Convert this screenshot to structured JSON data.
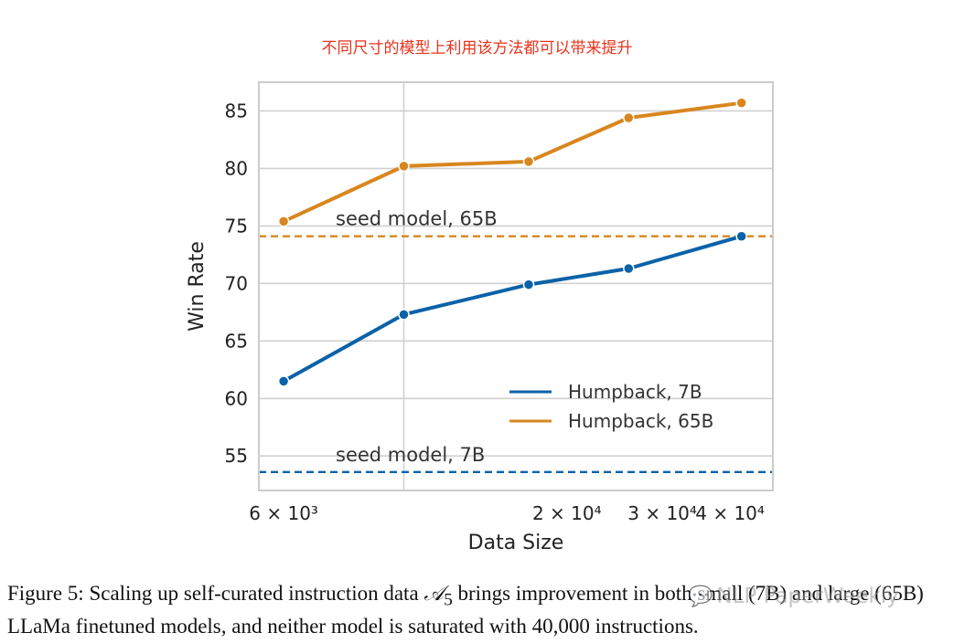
{
  "annotation": "不同尺寸的模型上利用该方法都可以带来提升",
  "chart_data": {
    "type": "line",
    "xlabel": "Data Size",
    "ylabel": "Win Rate",
    "xscale": "log",
    "xlim": [
      5400,
      48000
    ],
    "ylim": [
      52,
      87.5
    ],
    "grid": true,
    "legend_position": "lower-right",
    "x_ticks": [
      {
        "value": 6000,
        "label": "6 × 10³"
      },
      {
        "value": 20000,
        "label": "2 × 10⁴"
      },
      {
        "value": 30000,
        "label": "3 × 10⁴"
      },
      {
        "value": 40000,
        "label": "4 × 10⁴"
      }
    ],
    "x_gridline_at": 10000,
    "y_ticks": [
      55,
      60,
      65,
      70,
      75,
      80,
      85
    ],
    "series": [
      {
        "name": "Humpback, 7B",
        "color": "#0a62a8",
        "x": [
          6000,
          10000,
          17000,
          26000,
          42000
        ],
        "y": [
          61.5,
          67.3,
          69.9,
          71.3,
          74.1
        ]
      },
      {
        "name": "Humpback, 65B",
        "color": "#d9861f",
        "x": [
          6000,
          10000,
          17000,
          26000,
          42000
        ],
        "y": [
          75.4,
          80.2,
          80.6,
          84.4,
          85.7
        ]
      }
    ],
    "reference_lines": [
      {
        "label": "seed model, 65B",
        "y": 74.1,
        "color": "#d9861f"
      },
      {
        "label": "seed model, 7B",
        "y": 53.6,
        "color": "#0a62a8"
      }
    ]
  },
  "caption": {
    "prefix": "Figure 5: Scaling up self-curated instruction data ",
    "symbol": "𝒜",
    "subscript": "5",
    "rest": " brings improvement in both small (7B) and large (65B) LLaMa finetuned models, and neither model is saturated with 40,000 instructions."
  },
  "watermark": {
    "icon": "wechat-icon",
    "text": "NLP PaperWeekly"
  }
}
